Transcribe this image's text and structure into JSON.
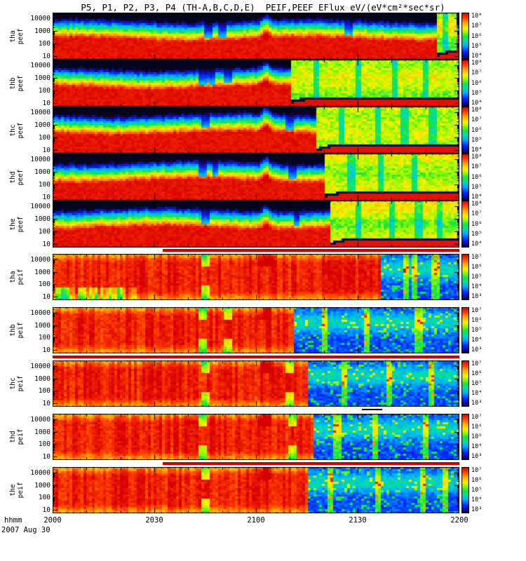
{
  "chart_data": {
    "type": "heatmap",
    "subtype": "time-energy particle spectrogram, 10 stacked panels (THEMIS ESA electron + ion energy flux)",
    "title": "P5, P1, P2, P3, P4 (TH-A,B,C,D,E)  PEIF,PEEF EFlux eV/(eV*cm²*sec*sr)",
    "xaxis": {
      "label": "hhmm",
      "date_label": "2007 Aug 30",
      "tick_labels": [
        "2000",
        "2030",
        "2100",
        "2130",
        "2200"
      ],
      "tick_minutes": [
        0,
        30,
        60,
        90,
        120
      ],
      "duration_min": 120
    },
    "yaxis": {
      "scale": "log",
      "unit": "eV",
      "tick_labels": [
        "10000",
        "1000",
        "100",
        "10"
      ],
      "tick_values": [
        10000,
        1000,
        100,
        10
      ],
      "log_range": [
        0.7,
        4.45
      ]
    },
    "colormap": {
      "name": "rainbow",
      "low_color": "#05051e",
      "high_color": "#d70000"
    },
    "flag_bars": [
      {
        "above_panel_index": 5,
        "x0_frac": 0.27,
        "x1_frac": 1.0,
        "color": "#cc0000",
        "height": 4
      },
      {
        "above_panel_index": 7,
        "x0_frac": 0.0,
        "x1_frac": 1.0,
        "color": "#cc0000",
        "height": 4
      },
      {
        "above_panel_index": 8,
        "x0_frac": 0.76,
        "x1_frac": 0.81,
        "color": "#000000",
        "height": 2
      },
      {
        "above_panel_index": 9,
        "x0_frac": 0.27,
        "x1_frac": 1.0,
        "color": "#cc0000",
        "height": 4
      }
    ],
    "panels": [
      {
        "id": "tha-peef",
        "label_top": "tha",
        "label_bottom": "peef",
        "species": "electrons",
        "colorbar_ticks": [
          "10⁸",
          "10⁷",
          "10⁶",
          "10⁵",
          "10⁴"
        ],
        "colorbar_range_log10": [
          4,
          8
        ],
        "regimes": [
          "2000-2153 intense 30-600 eV electron band, flux ~10⁸; blue/dark above 2 keV",
          "2153-2159 brief broadband plasma-sheet interval (yellow-green all energies)",
          "2159-2200 low-energy band resumes"
        ],
        "sim": {
          "t1": 113,
          "t2": 119,
          "bandC": 2.3,
          "stripes": [
            46,
            50,
            87
          ],
          "greens": [
            116
          ],
          "inj": 63,
          "seed": 1
        }
      },
      {
        "id": "thb-peef",
        "label_top": "thb",
        "label_bottom": "peef",
        "species": "electrons",
        "colorbar_ticks": [
          "10⁸",
          "10⁷",
          "10⁶",
          "10⁵",
          "10⁴"
        ],
        "colorbar_range_log10": [
          4,
          8
        ],
        "regimes": [
          "2000-2110 intense 30-600 eV band with dropout columns near 2044-2052",
          "2110-2200 plasma-sheet electrons, broad yellow-green flux, thin red+black line at lowest energies"
        ],
        "sim": {
          "t1": 70,
          "t2": null,
          "bandC": 2.2,
          "stripes": [
            44,
            47,
            52
          ],
          "greens": [
            78,
            90,
            101,
            110
          ],
          "inj": 63,
          "seed": 2
        }
      },
      {
        "id": "thc-peef",
        "label_top": "thc",
        "label_bottom": "peef",
        "species": "electrons",
        "colorbar_ticks": [
          "10⁸",
          "10⁷",
          "10⁶",
          "10⁵",
          "10⁴"
        ],
        "colorbar_range_log10": [
          4,
          8
        ],
        "regimes": [
          "2000-2118 intense 30-600 eV band",
          "2118-2200 plasma-sheet electrons; rising black spacecraft-potential line near bottom"
        ],
        "sim": {
          "t1": 78,
          "t2": null,
          "bandC": 2.3,
          "stripes": [
            45,
            70
          ],
          "greens": [
            85,
            96,
            104,
            112
          ],
          "inj": 63,
          "seed": 3
        }
      },
      {
        "id": "thd-peef",
        "label_top": "thd",
        "label_bottom": "peef",
        "species": "electrons",
        "colorbar_ticks": [
          "10⁸",
          "10⁷",
          "10⁶",
          "10⁵",
          "10⁴"
        ],
        "colorbar_range_log10": [
          4,
          8
        ],
        "regimes": [
          "2000-2120 intense 30-600 eV band with dropouts near 2044-2111",
          "2120-2200 plasma-sheet electrons, yellow-green with green columns"
        ],
        "sim": {
          "t1": 80,
          "t2": null,
          "bandC": 2.25,
          "stripes": [
            44,
            48,
            71
          ],
          "greens": [
            88,
            97,
            107
          ],
          "inj": 63,
          "seed": 4
        }
      },
      {
        "id": "the-peef",
        "label_top": "the",
        "label_bottom": "peef",
        "species": "electrons",
        "colorbar_ticks": [
          "10⁸",
          "10⁷",
          "10⁶",
          "10⁵",
          "10⁴"
        ],
        "colorbar_range_log10": [
          4,
          8
        ],
        "regimes": [
          "2000-2122 intense 30-600 eV band",
          "2122-2200 plasma-sheet electrons, yellow-green with green columns"
        ],
        "sim": {
          "t1": 82,
          "t2": null,
          "bandC": 2.25,
          "stripes": [
            45,
            72
          ],
          "greens": [
            90,
            100,
            108,
            114
          ],
          "inj": 63,
          "seed": 5
        }
      },
      {
        "id": "tha-peif",
        "label_top": "tha",
        "label_bottom": "peif",
        "species": "ions",
        "colorbar_ticks": [
          "10⁷",
          "10⁶",
          "10⁵",
          "10⁴",
          "10³"
        ],
        "colorbar_range_log10": [
          3,
          7
        ],
        "regimes": [
          "2000-2137 broad intense ion flux ~100 eV-10 keV (red/orange), patchy low-energy flux before 2025",
          "2137-2200 cold/tenuous ions: blue background, scattered cyan-green, green columns near 2144-2153"
        ],
        "sim": {
          "t1": 97,
          "stripes": [
            45
          ],
          "greens": [
            104,
            107,
            113
          ],
          "inj": 63,
          "lowGap": 25,
          "seed": 6
        }
      },
      {
        "id": "thb-peif",
        "label_top": "thb",
        "label_bottom": "peif",
        "species": "ions",
        "colorbar_ticks": [
          "10⁷",
          "10⁶",
          "10⁵",
          "10⁴",
          "10³"
        ],
        "colorbar_range_log10": [
          3,
          7
        ],
        "regimes": [
          "2000-2111 broad intense ion flux (red/orange) with narrow dropouts near 2044 and 2052",
          "2111-2200 blue background with speckled green and a few green columns"
        ],
        "sim": {
          "t1": 71,
          "stripes": [
            44,
            52
          ],
          "greens": [
            80,
            93,
            108
          ],
          "inj": 63,
          "seed": 7
        }
      },
      {
        "id": "thc-peif",
        "label_top": "thc",
        "label_bottom": "peif",
        "species": "ions",
        "colorbar_ticks": [
          "10⁷",
          "10⁶",
          "10⁵",
          "10⁴",
          "10³"
        ],
        "colorbar_range_log10": [
          3,
          7
        ],
        "regimes": [
          "2000-2115 broad intense ion flux (red/orange)",
          "2115-2200 blue background with speckled cyan-green"
        ],
        "sim": {
          "t1": 75,
          "stripes": [
            45,
            70
          ],
          "greens": [
            86,
            99,
            112
          ],
          "inj": 63,
          "seed": 8
        }
      },
      {
        "id": "thd-peif",
        "label_top": "thd",
        "label_bottom": "peif",
        "species": "ions",
        "colorbar_ticks": [
          "10⁷",
          "10⁶",
          "10⁵",
          "10⁴",
          "10³"
        ],
        "colorbar_range_log10": [
          3,
          7
        ],
        "regimes": [
          "2000-2117 broad intense ion flux (red/orange) with vertical structure near 2040-2105",
          "2117-2200 blue background with speckled green columns"
        ],
        "sim": {
          "t1": 77,
          "stripes": [
            44,
            71
          ],
          "greens": [
            84,
            95,
            110
          ],
          "inj": 63,
          "seed": 9
        }
      },
      {
        "id": "the-peif",
        "label_top": "the",
        "label_bottom": "peif",
        "species": "ions",
        "colorbar_ticks": [
          "10⁷",
          "10⁶",
          "10⁵",
          "10⁴",
          "10³"
        ],
        "colorbar_range_log10": [
          3,
          7
        ],
        "regimes": [
          "2000-2115 broad intense ion flux (red/orange)",
          "2115-2200 blue background with green columns near 2122, 2136, 2149, 2156"
        ],
        "sim": {
          "t1": 75,
          "stripes": [
            45
          ],
          "greens": [
            82,
            96,
            109,
            116
          ],
          "inj": 63,
          "seed": 10
        }
      }
    ]
  }
}
